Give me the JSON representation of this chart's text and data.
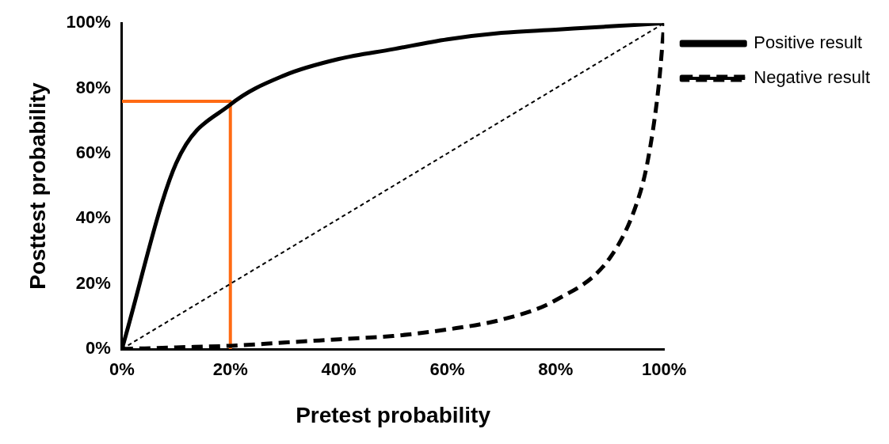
{
  "chart_data": {
    "type": "line",
    "xlabel": "Pretest probability",
    "ylabel": "Posttest probability",
    "xlim": [
      0,
      100
    ],
    "ylim": [
      0,
      100
    ],
    "xticks": [
      {
        "value": 0,
        "label": "0%"
      },
      {
        "value": 20,
        "label": "20%"
      },
      {
        "value": 40,
        "label": "40%"
      },
      {
        "value": 60,
        "label": "60%"
      },
      {
        "value": 80,
        "label": "80%"
      },
      {
        "value": 100,
        "label": "100%"
      }
    ],
    "yticks": [
      {
        "value": 0,
        "label": "0%"
      },
      {
        "value": 20,
        "label": "20%"
      },
      {
        "value": 40,
        "label": "40%"
      },
      {
        "value": 60,
        "label": "60%"
      },
      {
        "value": 80,
        "label": "80%"
      },
      {
        "value": 100,
        "label": "100%"
      }
    ],
    "grid": false,
    "legend": "right",
    "marker": "none",
    "series": [
      {
        "name": "Positive result",
        "color": "#000000",
        "line_style": "solid",
        "x": [
          0,
          10,
          20,
          30,
          40,
          50,
          60,
          70,
          80,
          90,
          100
        ],
        "values": [
          0,
          57,
          75,
          84,
          89,
          92,
          95,
          97,
          98,
          99,
          100
        ]
      },
      {
        "name": "Negative result",
        "color": "#000000",
        "line_style": "dashed",
        "x": [
          0,
          10,
          20,
          30,
          40,
          50,
          60,
          70,
          80,
          90,
          95,
          97,
          99,
          100
        ],
        "values": [
          0,
          0.5,
          1,
          2,
          3,
          4,
          6,
          9,
          15,
          28,
          45,
          58,
          81,
          100
        ]
      },
      {
        "color": "#000000",
        "line_style": "dotted",
        "x": [
          0,
          100
        ],
        "values": [
          0,
          100
        ]
      },
      {
        "color": "#ff6a13",
        "line_style": "solid",
        "x": [
          20,
          20,
          0
        ],
        "values": [
          0,
          76,
          76
        ]
      }
    ]
  }
}
